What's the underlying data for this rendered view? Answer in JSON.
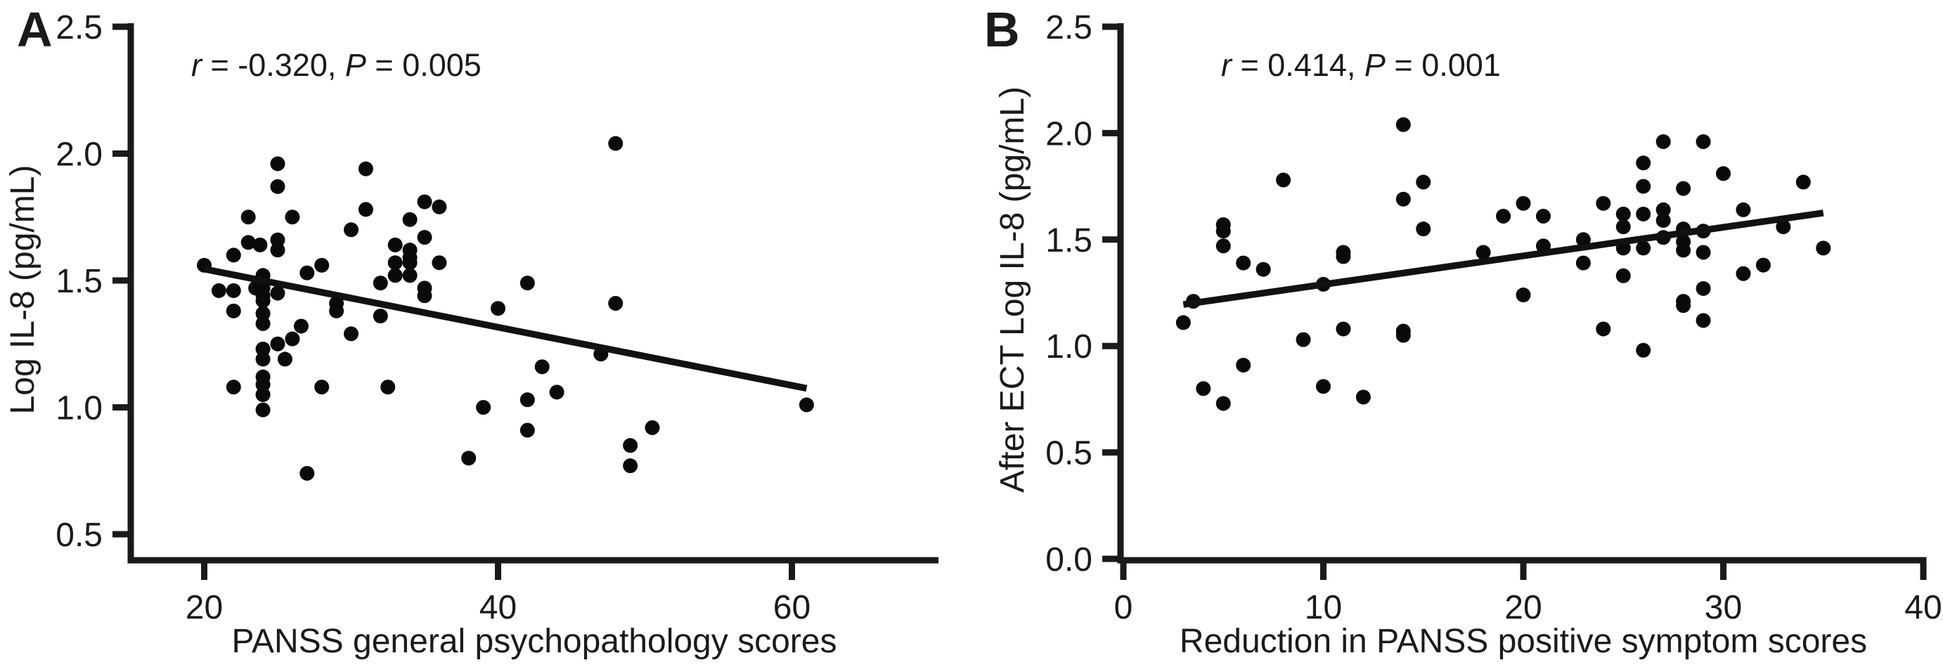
{
  "figure": {
    "background": "#ffffff",
    "ink_color": "#1a1a1a",
    "point_color": "#0a0a0a"
  },
  "chart_data": [
    {
      "type": "scatter",
      "panel_label": "A",
      "annotation": {
        "text": "r = -0.320, P = 0.005",
        "r": -0.32,
        "P": 0.005,
        "segments": [
          {
            "text": "r",
            "italic": true
          },
          {
            "text": " = -0.320, ",
            "italic": false
          },
          {
            "text": "P",
            "italic": true
          },
          {
            "text": " = 0.005",
            "italic": false
          }
        ]
      },
      "xlabel": "PANSS general psychopathology scores",
      "ylabel": "Log IL-8 (pg/mL)",
      "x_ticks": [
        20,
        40,
        60
      ],
      "x_tick_labels": [
        "20",
        "40",
        "60"
      ],
      "y_ticks": [
        0.5,
        1.0,
        1.5,
        2.0,
        2.5
      ],
      "y_tick_labels": [
        "0.5",
        "1.0",
        "1.5",
        "2.0",
        "2.5"
      ],
      "xlim": [
        15,
        70
      ],
      "ylim": [
        0.4,
        2.5
      ],
      "grid": false,
      "trend_line": {
        "x": [
          20,
          61
        ],
        "y": [
          1.545,
          1.075
        ]
      },
      "points": [
        [
          20,
          1.56
        ],
        [
          21,
          1.46
        ],
        [
          22,
          1.46
        ],
        [
          22,
          1.6
        ],
        [
          22,
          1.38
        ],
        [
          22,
          1.08
        ],
        [
          23,
          1.75
        ],
        [
          23,
          1.65
        ],
        [
          23.8,
          1.64
        ],
        [
          23.5,
          1.47
        ],
        [
          24,
          1.52
        ],
        [
          24,
          1.5
        ],
        [
          24,
          1.47
        ],
        [
          24,
          1.44
        ],
        [
          24,
          1.42
        ],
        [
          24,
          1.37
        ],
        [
          24,
          1.33
        ],
        [
          24,
          1.23
        ],
        [
          24,
          1.19
        ],
        [
          24,
          1.12
        ],
        [
          24,
          1.09
        ],
        [
          24,
          1.05
        ],
        [
          24,
          0.99
        ],
        [
          25,
          1.96
        ],
        [
          25,
          1.87
        ],
        [
          25,
          1.66
        ],
        [
          25,
          1.62
        ],
        [
          25,
          1.45
        ],
        [
          25,
          1.25
        ],
        [
          25.5,
          1.19
        ],
        [
          26,
          1.75
        ],
        [
          26,
          1.27
        ],
        [
          26.6,
          1.32
        ],
        [
          27,
          1.53
        ],
        [
          27,
          0.74
        ],
        [
          28,
          1.56
        ],
        [
          28,
          1.08
        ],
        [
          29,
          1.41
        ],
        [
          29,
          1.38
        ],
        [
          30,
          1.7
        ],
        [
          30,
          1.29
        ],
        [
          31,
          1.94
        ],
        [
          31,
          1.78
        ],
        [
          32,
          1.49
        ],
        [
          32,
          1.36
        ],
        [
          32.5,
          1.08
        ],
        [
          33,
          1.64
        ],
        [
          33,
          1.57
        ],
        [
          33,
          1.52
        ],
        [
          34,
          1.74
        ],
        [
          34,
          1.62
        ],
        [
          34,
          1.59
        ],
        [
          34,
          1.57
        ],
        [
          34,
          1.52
        ],
        [
          35,
          1.81
        ],
        [
          35,
          1.67
        ],
        [
          35,
          1.47
        ],
        [
          35,
          1.44
        ],
        [
          36,
          1.79
        ],
        [
          36,
          1.57
        ],
        [
          38,
          0.8
        ],
        [
          39,
          1.0
        ],
        [
          40,
          1.39
        ],
        [
          42,
          1.49
        ],
        [
          42,
          1.03
        ],
        [
          42,
          0.91
        ],
        [
          43,
          1.16
        ],
        [
          44,
          1.06
        ],
        [
          47,
          1.21
        ],
        [
          48,
          2.04
        ],
        [
          48,
          1.41
        ],
        [
          49,
          0.85
        ],
        [
          49,
          0.77
        ],
        [
          50.5,
          0.92
        ],
        [
          61,
          1.01
        ]
      ]
    },
    {
      "type": "scatter",
      "panel_label": "B",
      "annotation": {
        "text": "r = 0.414, P = 0.001",
        "r": 0.414,
        "P": 0.001,
        "segments": [
          {
            "text": "r",
            "italic": true
          },
          {
            "text": " = 0.414, ",
            "italic": false
          },
          {
            "text": "P",
            "italic": true
          },
          {
            "text": " = 0.001",
            "italic": false
          }
        ]
      },
      "xlabel": "Reduction in PANSS positive symptom scores",
      "ylabel": "After ECT Log IL-8 (pg/mL)",
      "x_ticks": [
        0,
        10,
        20,
        30,
        40
      ],
      "x_tick_labels": [
        "0",
        "10",
        "20",
        "30",
        "40"
      ],
      "y_ticks": [
        0.0,
        0.5,
        1.0,
        1.5,
        2.0,
        2.5
      ],
      "y_tick_labels": [
        "0.0",
        "0.5",
        "1.0",
        "1.5",
        "2.0",
        "2.5"
      ],
      "xlim": [
        0,
        40
      ],
      "ylim": [
        0.0,
        2.5
      ],
      "grid": false,
      "trend_line": {
        "x": [
          3,
          35
        ],
        "y": [
          1.195,
          1.625
        ]
      },
      "points": [
        [
          3,
          1.11
        ],
        [
          3.5,
          1.21
        ],
        [
          4,
          0.8
        ],
        [
          5,
          1.57
        ],
        [
          5,
          1.54
        ],
        [
          5,
          1.47
        ],
        [
          5,
          0.73
        ],
        [
          6,
          1.39
        ],
        [
          7,
          1.36
        ],
        [
          6,
          0.91
        ],
        [
          8,
          1.78
        ],
        [
          9,
          1.03
        ],
        [
          10,
          1.29
        ],
        [
          10,
          0.81
        ],
        [
          11,
          1.44
        ],
        [
          11,
          1.42
        ],
        [
          11,
          1.08
        ],
        [
          12,
          0.76
        ],
        [
          14,
          2.04
        ],
        [
          14,
          1.69
        ],
        [
          14,
          1.07
        ],
        [
          14,
          1.05
        ],
        [
          15,
          1.77
        ],
        [
          15,
          1.55
        ],
        [
          18,
          1.44
        ],
        [
          19,
          1.61
        ],
        [
          20,
          1.67
        ],
        [
          20,
          1.24
        ],
        [
          21,
          1.61
        ],
        [
          21,
          1.47
        ],
        [
          23,
          1.5
        ],
        [
          23,
          1.39
        ],
        [
          24,
          1.67
        ],
        [
          24,
          1.08
        ],
        [
          25,
          1.62
        ],
        [
          25,
          1.56
        ],
        [
          25,
          1.46
        ],
        [
          25,
          1.33
        ],
        [
          26,
          1.86
        ],
        [
          26,
          1.75
        ],
        [
          26,
          1.62
        ],
        [
          26,
          1.46
        ],
        [
          26,
          0.98
        ],
        [
          27,
          1.96
        ],
        [
          27,
          1.64
        ],
        [
          27,
          1.59
        ],
        [
          27,
          1.51
        ],
        [
          28,
          1.74
        ],
        [
          28,
          1.55
        ],
        [
          28,
          1.49
        ],
        [
          28,
          1.45
        ],
        [
          28,
          1.21
        ],
        [
          28,
          1.19
        ],
        [
          29,
          1.96
        ],
        [
          29,
          1.54
        ],
        [
          29,
          1.44
        ],
        [
          29,
          1.27
        ],
        [
          29,
          1.12
        ],
        [
          30,
          1.81
        ],
        [
          31,
          1.64
        ],
        [
          31,
          1.34
        ],
        [
          32,
          1.38
        ],
        [
          33,
          1.56
        ],
        [
          34,
          1.77
        ],
        [
          35,
          1.46
        ]
      ]
    }
  ]
}
